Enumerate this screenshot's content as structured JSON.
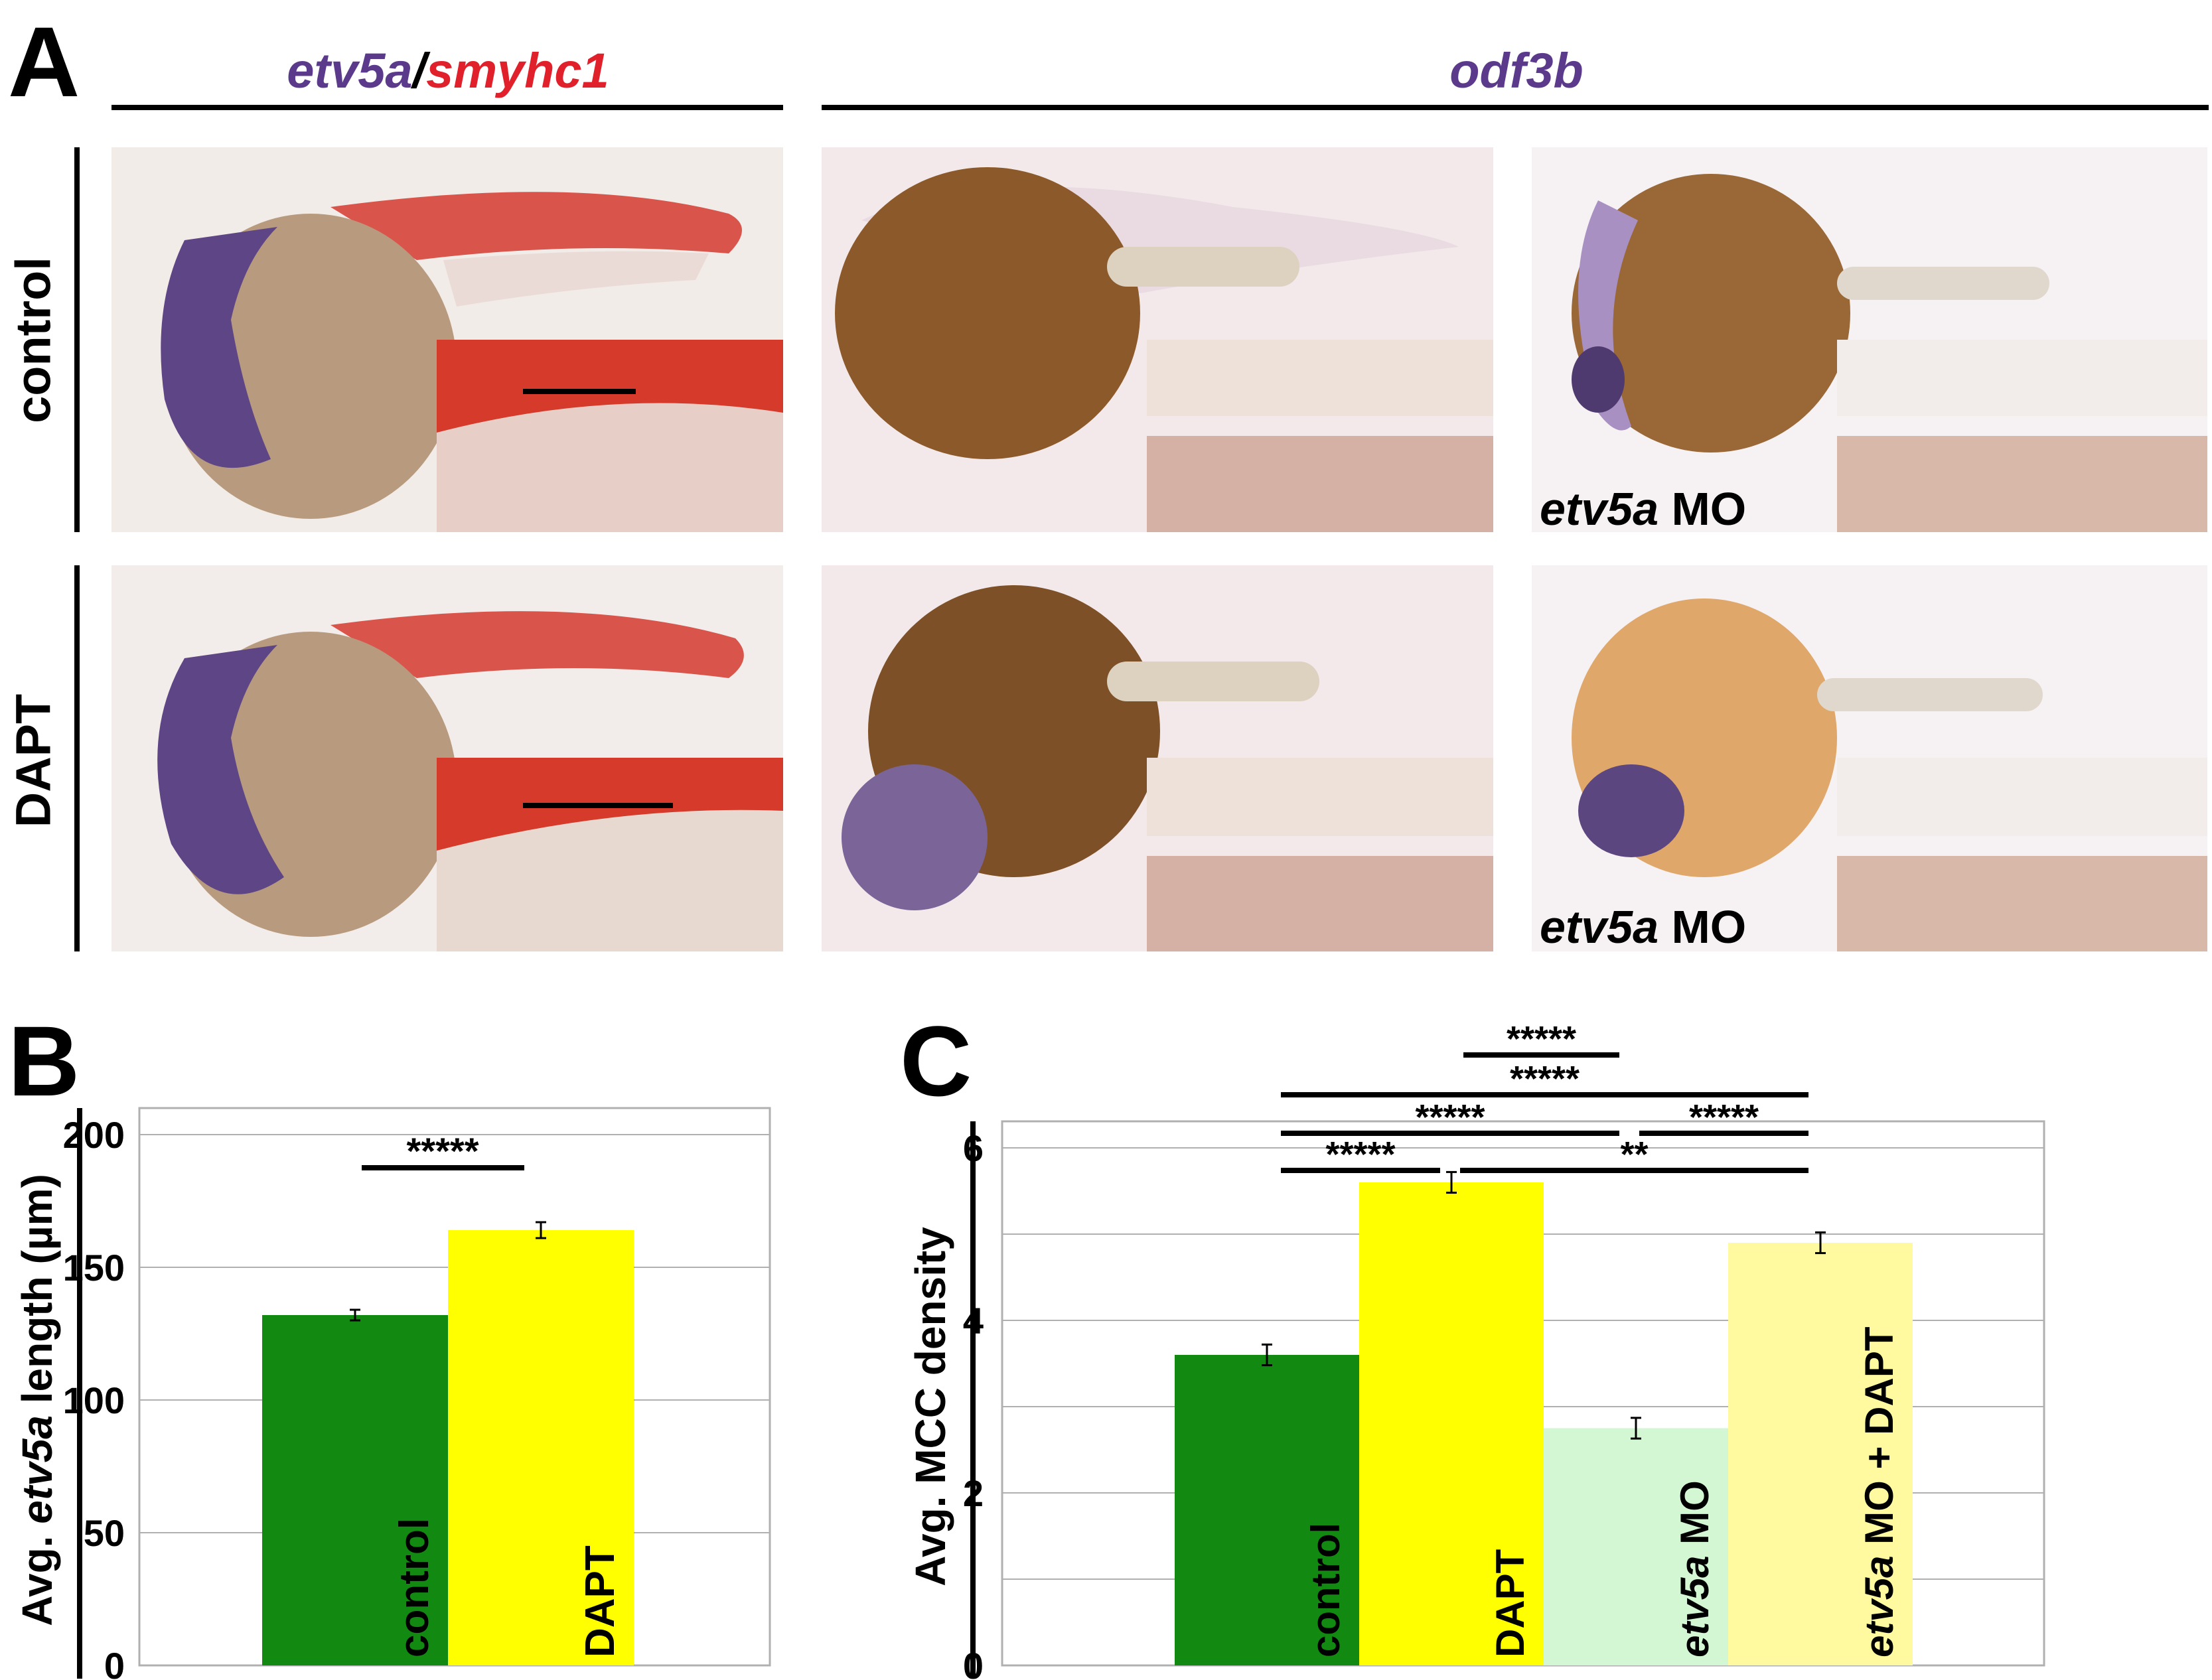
{
  "figure": {
    "panel_a_letter": "A",
    "panel_b_letter": "B",
    "panel_c_letter": "C",
    "header_left_gene1": "etv5a",
    "header_left_sep": "/",
    "header_left_gene2": "smyhc1",
    "header_right": "odf3b",
    "row_labels": [
      "control",
      "DAPT"
    ],
    "mo_label_gene": "etv5a",
    "mo_label_suffix": " MO",
    "colors": {
      "purple_text": "#5b3a8c",
      "red_text": "#e0202a",
      "control_bar": "#128a12",
      "dapt_bar": "#ffff00",
      "mo_bar": "#d2f7d2",
      "mo_dapt_bar": "#fff9a0"
    }
  },
  "chart_data": [
    {
      "type": "bar",
      "panel": "B",
      "ylabel_prefix": "Avg. ",
      "ylabel_italic": "etv5a",
      "ylabel_suffix": " length (µm)",
      "categories": [
        "control",
        "DAPT"
      ],
      "values": [
        132,
        164
      ],
      "errors": [
        2,
        3
      ],
      "ylim": [
        0,
        200
      ],
      "yticks": [
        "0",
        "50",
        "100",
        "150",
        "200"
      ],
      "grid": true,
      "significance": [
        {
          "from": "control",
          "to": "DAPT",
          "label": "*****"
        }
      ]
    },
    {
      "type": "bar",
      "panel": "C",
      "ylabel": "Avg. MCC density",
      "categories": [
        "control",
        "DAPT",
        "etv5a MO",
        "etv5a MO + DAPT"
      ],
      "values": [
        3.6,
        5.6,
        2.75,
        4.9
      ],
      "errors": [
        0.12,
        0.12,
        0.12,
        0.12
      ],
      "ylim": [
        0,
        6
      ],
      "yticks": [
        "0",
        "2",
        "4",
        "6"
      ],
      "grid": true,
      "significance": [
        {
          "label": "*****",
          "pair": "DAPT vs etv5a MO"
        },
        {
          "label": "*****",
          "pair": "control vs etv5a MO + DAPT"
        },
        {
          "label": "*****",
          "pair": "control vs etv5a MO"
        },
        {
          "label": "*****",
          "pair": "etv5a MO vs etv5a MO + DAPT"
        },
        {
          "label": "*****",
          "pair": "control vs DAPT"
        },
        {
          "label": "**",
          "pair": "DAPT vs etv5a MO + DAPT"
        }
      ]
    }
  ]
}
